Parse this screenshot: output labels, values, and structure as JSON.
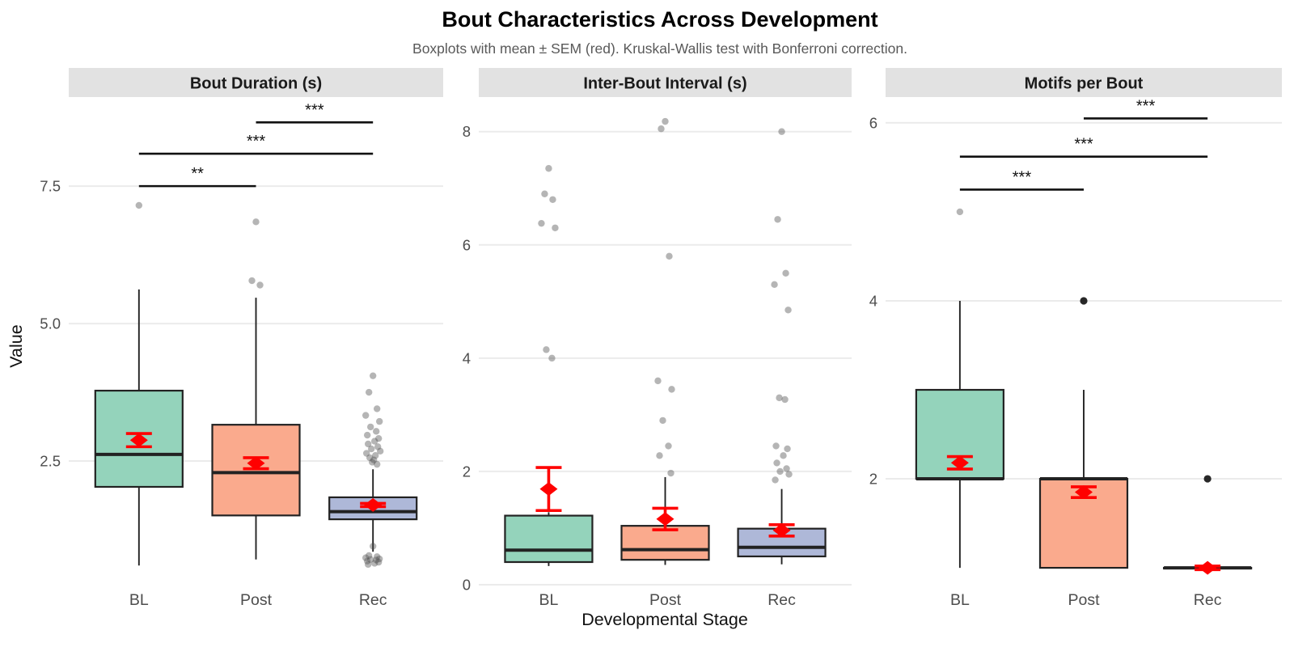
{
  "header": {
    "title": "Bout Characteristics Across Development",
    "subtitle": "Boxplots with mean ± SEM (red). Kruskal-Wallis test with Bonferroni correction."
  },
  "axes": {
    "y_label": "Value",
    "x_label": "Developmental Stage"
  },
  "categories": [
    "BL",
    "Post",
    "Rec"
  ],
  "palette": {
    "box_fills": [
      "#94D3BB",
      "#FAAA8D",
      "#AEB8D8"
    ],
    "box_stroke": "#222222",
    "whisker_color": "#222222",
    "mean_color": "#FF0000",
    "outlier_color": "#4F4F4F",
    "outlier_dark_color": "#111111",
    "grid_color": "#EBEBEB",
    "strip_bg": "#E2E2E2",
    "strip_text": "#1A1A1A",
    "tick_color": "#4D4D4D",
    "subtitle_color": "#595959",
    "sig_color": "#111111"
  },
  "chart_data": [
    {
      "type": "boxplot",
      "title": "Bout Duration (s)",
      "ylim": [
        0.25,
        9.12
      ],
      "yticks": [
        2.5,
        5.0,
        7.5
      ],
      "ytick_labels": [
        "2.5",
        "5.0",
        "7.5"
      ],
      "categories": [
        "BL",
        "Post",
        "Rec"
      ],
      "boxes": [
        {
          "group": "BL",
          "whislo": 0.6,
          "q1": 2.03,
          "med": 2.62,
          "q3": 3.78,
          "whishi": 5.62,
          "mean": 2.88,
          "sem": 0.12,
          "outliers": [
            7.15
          ],
          "outliers_dark": []
        },
        {
          "group": "Post",
          "whislo": 0.71,
          "q1": 1.51,
          "med": 2.29,
          "q3": 3.16,
          "whishi": 5.47,
          "mean": 2.46,
          "sem": 0.1,
          "outliers": [
            6.85,
            5.78,
            5.7
          ],
          "outliers_dark": []
        },
        {
          "group": "Rec",
          "whislo": 0.85,
          "q1": 1.44,
          "med": 1.58,
          "q3": 1.84,
          "whishi": 2.35,
          "mean": 1.7,
          "sem": 0.03,
          "outliers": [
            4.05,
            3.75,
            3.45,
            3.33,
            3.22,
            3.12,
            3.04,
            2.97,
            2.91,
            2.86,
            2.81,
            2.76,
            2.72,
            2.68,
            2.64,
            2.6,
            2.56,
            2.52,
            2.48,
            2.44,
            0.95,
            0.78,
            0.76,
            0.74,
            0.72,
            0.71,
            0.7,
            0.68,
            0.66,
            0.64,
            0.62
          ],
          "outliers_dark": []
        }
      ],
      "sig_bars": [
        {
          "from": "BL",
          "to": "Post",
          "y": 7.5,
          "label": "**"
        },
        {
          "from": "BL",
          "to": "Rec",
          "y": 8.09,
          "label": "***"
        },
        {
          "from": "Post",
          "to": "Rec",
          "y": 8.66,
          "label": "***"
        }
      ]
    },
    {
      "type": "boxplot",
      "title": "Inter-Bout Interval (s)",
      "ylim": [
        0.0,
        8.61
      ],
      "yticks": [
        0,
        2,
        4,
        6,
        8
      ],
      "ytick_labels": [
        "0",
        "2",
        "4",
        "6",
        "8"
      ],
      "categories": [
        "BL",
        "Post",
        "Rec"
      ],
      "boxes": [
        {
          "group": "BL",
          "whislo": 0.33,
          "q1": 0.4,
          "med": 0.61,
          "q3": 1.22,
          "whishi": 1.28,
          "mean": 1.69,
          "sem": 0.38,
          "outliers": [
            7.35,
            6.9,
            6.8,
            6.38,
            6.3,
            4.15,
            4.0
          ],
          "outliers_dark": []
        },
        {
          "group": "Post",
          "whislo": 0.35,
          "q1": 0.44,
          "med": 0.62,
          "q3": 1.04,
          "whishi": 1.9,
          "mean": 1.16,
          "sem": 0.19,
          "outliers": [
            8.18,
            8.05,
            5.8,
            3.6,
            3.45,
            2.9,
            2.45,
            2.28,
            1.97
          ],
          "outliers_dark": []
        },
        {
          "group": "Rec",
          "whislo": 0.36,
          "q1": 0.5,
          "med": 0.66,
          "q3": 0.99,
          "whishi": 1.69,
          "mean": 0.96,
          "sem": 0.1,
          "outliers": [
            8.0,
            6.45,
            5.5,
            5.3,
            4.85,
            3.3,
            3.27,
            2.45,
            2.4,
            2.28,
            2.15,
            2.05,
            2.0,
            1.95,
            1.85
          ],
          "outliers_dark": []
        }
      ],
      "sig_bars": []
    },
    {
      "type": "boxplot",
      "title": "Motifs per Bout",
      "ylim": [
        0.81,
        6.29
      ],
      "yticks": [
        2,
        4,
        6
      ],
      "ytick_labels": [
        "2",
        "4",
        "6"
      ],
      "categories": [
        "BL",
        "Post",
        "Rec"
      ],
      "boxes": [
        {
          "group": "BL",
          "whislo": 1.0,
          "q1": 2.0,
          "med": 2.0,
          "q3": 3.0,
          "whishi": 4.0,
          "mean": 2.18,
          "sem": 0.07,
          "outliers": [
            5.0
          ],
          "outliers_dark": []
        },
        {
          "group": "Post",
          "whislo": 1.0,
          "q1": 1.0,
          "med": 2.0,
          "q3": 2.0,
          "whishi": 3.0,
          "mean": 1.85,
          "sem": 0.06,
          "outliers": [],
          "outliers_dark": [
            4.0
          ]
        },
        {
          "group": "Rec",
          "whislo": 1.0,
          "q1": 1.0,
          "med": 1.0,
          "q3": 1.0,
          "whishi": 1.0,
          "mean": 1.0,
          "sem": 0.02,
          "outliers": [],
          "outliers_dark": [
            2.0
          ]
        }
      ],
      "sig_bars": [
        {
          "from": "BL",
          "to": "Post",
          "y": 5.25,
          "label": "***"
        },
        {
          "from": "BL",
          "to": "Rec",
          "y": 5.62,
          "label": "***"
        },
        {
          "from": "Post",
          "to": "Rec",
          "y": 6.05,
          "label": "***"
        }
      ]
    }
  ]
}
